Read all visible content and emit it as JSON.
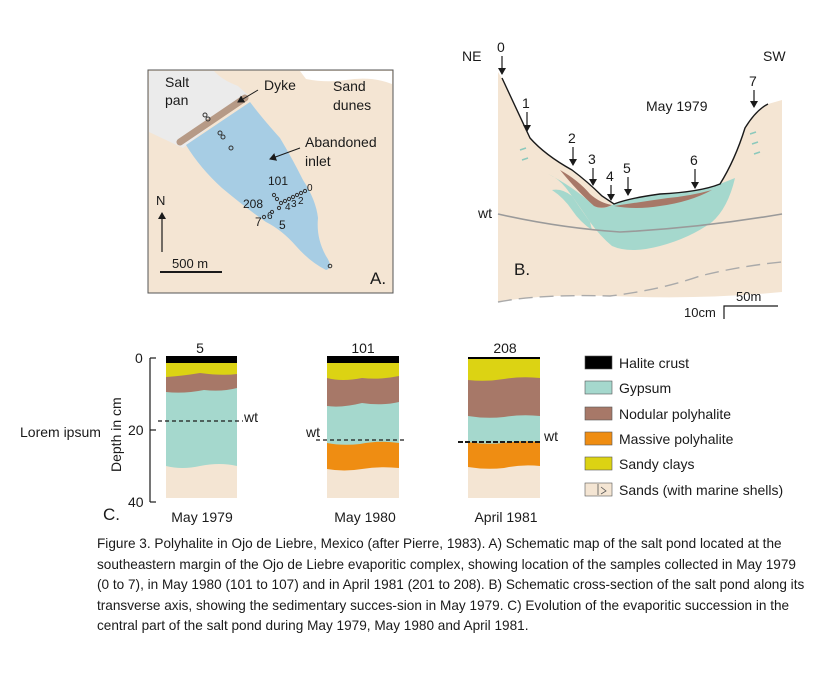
{
  "panel_a": {
    "letter": "A.",
    "labels": {
      "salt_pan_1": "Salt",
      "salt_pan_2": "pan",
      "dyke": "Dyke",
      "sand_dunes_1": "Sand",
      "sand_dunes_2": "dunes",
      "inlet_1": "Abandoned",
      "inlet_2": "inlet",
      "north": "N",
      "scale": "500 m"
    },
    "samples": {
      "s101": "101",
      "s208": "208",
      "s0": "0",
      "s2": "2",
      "s3": "3",
      "s4": "4",
      "s5": "5",
      "s6": "6",
      "s7": "7"
    }
  },
  "panel_b": {
    "letter": "B.",
    "ne": "NE",
    "sw": "SW",
    "date": "May 1979",
    "wt": "wt",
    "scale_h": "50m",
    "scale_v": "10cm",
    "points": [
      "0",
      "1",
      "2",
      "3",
      "4",
      "5",
      "6",
      "7"
    ]
  },
  "panel_c": {
    "letter": "C.",
    "ylabel": "Depth in cm",
    "ticks": [
      "0",
      "20",
      "40"
    ],
    "annotation": "Lorem ipsum",
    "wt": "wt",
    "columns": [
      {
        "id": "5",
        "date": "May 1979"
      },
      {
        "id": "101",
        "date": "May 1980"
      },
      {
        "id": "208",
        "date": "April 1981"
      }
    ]
  },
  "legend": [
    {
      "label": "Halite crust",
      "color": "#000000"
    },
    {
      "label": "Gypsum",
      "color": "#a5d8cd"
    },
    {
      "label": "Nodular polyhalite",
      "color": "#a77868"
    },
    {
      "label": "Massive polyhalite",
      "color": "#ef8d12"
    },
    {
      "label": "Sandy clays",
      "color": "#dcd313"
    },
    {
      "label": "Sands (with marine shells)",
      "color": "#f4e5d3"
    }
  ],
  "colors": {
    "sand": "#f4e5d3",
    "gypsum": "#a5d8cd",
    "nodular": "#a77868",
    "massive": "#ef8d12",
    "sandy_clay": "#dcd313",
    "halite": "#000000",
    "salt_pan": "#ebebeb",
    "inlet": "#a7cde4",
    "dyke": "#b69a86"
  },
  "caption": "Figure 3. Polyhalite in Ojo de Liebre, Mexico (after Pierre, 1983). A) Schematic map of the salt pond located at the southeastern margin of the Ojo de Liebre evaporitic complex, showing location of the samples collected in May 1979 (0 to 7), in May 1980 (101 to 107) and in April 1981 (201 to 208). B) Schematic cross-section of the salt pond along its transverse axis, showing the sedimentary succes-sion in May 1979. C) Evolution of the evaporitic succession in the central part of the salt pond during May 1979, May 1980 and April 1981."
}
